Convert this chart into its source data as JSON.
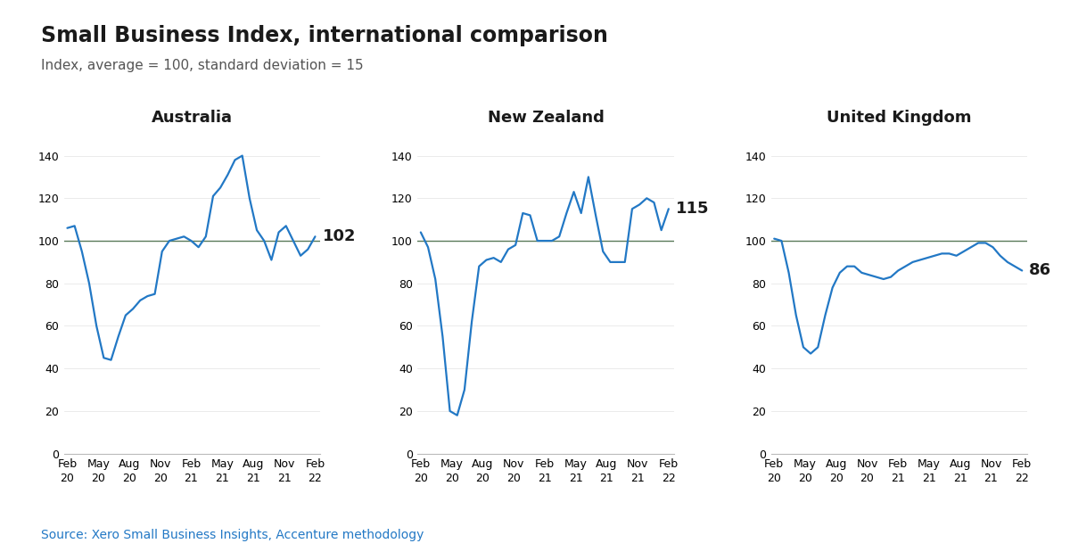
{
  "title": "Small Business Index, international comparison",
  "subtitle": "Index, average = 100, standard deviation = 15",
  "source": "Source: Xero Small Business Insights, Accenture methodology",
  "panels": [
    {
      "label": "Australia",
      "last_value": 102,
      "values": [
        106,
        107,
        95,
        80,
        60,
        45,
        44,
        55,
        65,
        68,
        72,
        74,
        75,
        95,
        100,
        101,
        102,
        100,
        97,
        102,
        121,
        125,
        131,
        138,
        140,
        120,
        105,
        100,
        91,
        104,
        107,
        100,
        93,
        96,
        102
      ]
    },
    {
      "label": "New Zealand",
      "last_value": 115,
      "values": [
        104,
        97,
        82,
        55,
        20,
        18,
        30,
        62,
        88,
        91,
        92,
        90,
        96,
        98,
        113,
        112,
        100,
        100,
        100,
        102,
        113,
        123,
        113,
        130,
        112,
        95,
        90,
        90,
        90,
        115,
        117,
        120,
        118,
        105,
        115
      ]
    },
    {
      "label": "United Kingdom",
      "last_value": 86,
      "values": [
        101,
        100,
        85,
        65,
        50,
        47,
        50,
        65,
        78,
        85,
        88,
        88,
        85,
        84,
        83,
        82,
        83,
        86,
        88,
        90,
        91,
        92,
        93,
        94,
        94,
        93,
        95,
        97,
        99,
        99,
        97,
        93,
        90,
        88,
        86
      ]
    }
  ],
  "line_color": "#2278c5",
  "reference_line_color": "#5a7a5a",
  "reference_line_value": 100,
  "ylim": [
    0,
    150
  ],
  "yticks": [
    0,
    20,
    40,
    60,
    80,
    100,
    120,
    140
  ],
  "background_color": "#ffffff",
  "title_fontsize": 17,
  "subtitle_fontsize": 11,
  "panel_label_fontsize": 13,
  "axis_fontsize": 9,
  "annotation_fontsize": 13,
  "source_fontsize": 10,
  "tick_labels": [
    "Feb\n20",
    "May\n20",
    "Aug\n20",
    "Nov\n20",
    "Feb\n21",
    "May\n21",
    "Aug\n21",
    "Nov\n21",
    "Feb\n22"
  ]
}
